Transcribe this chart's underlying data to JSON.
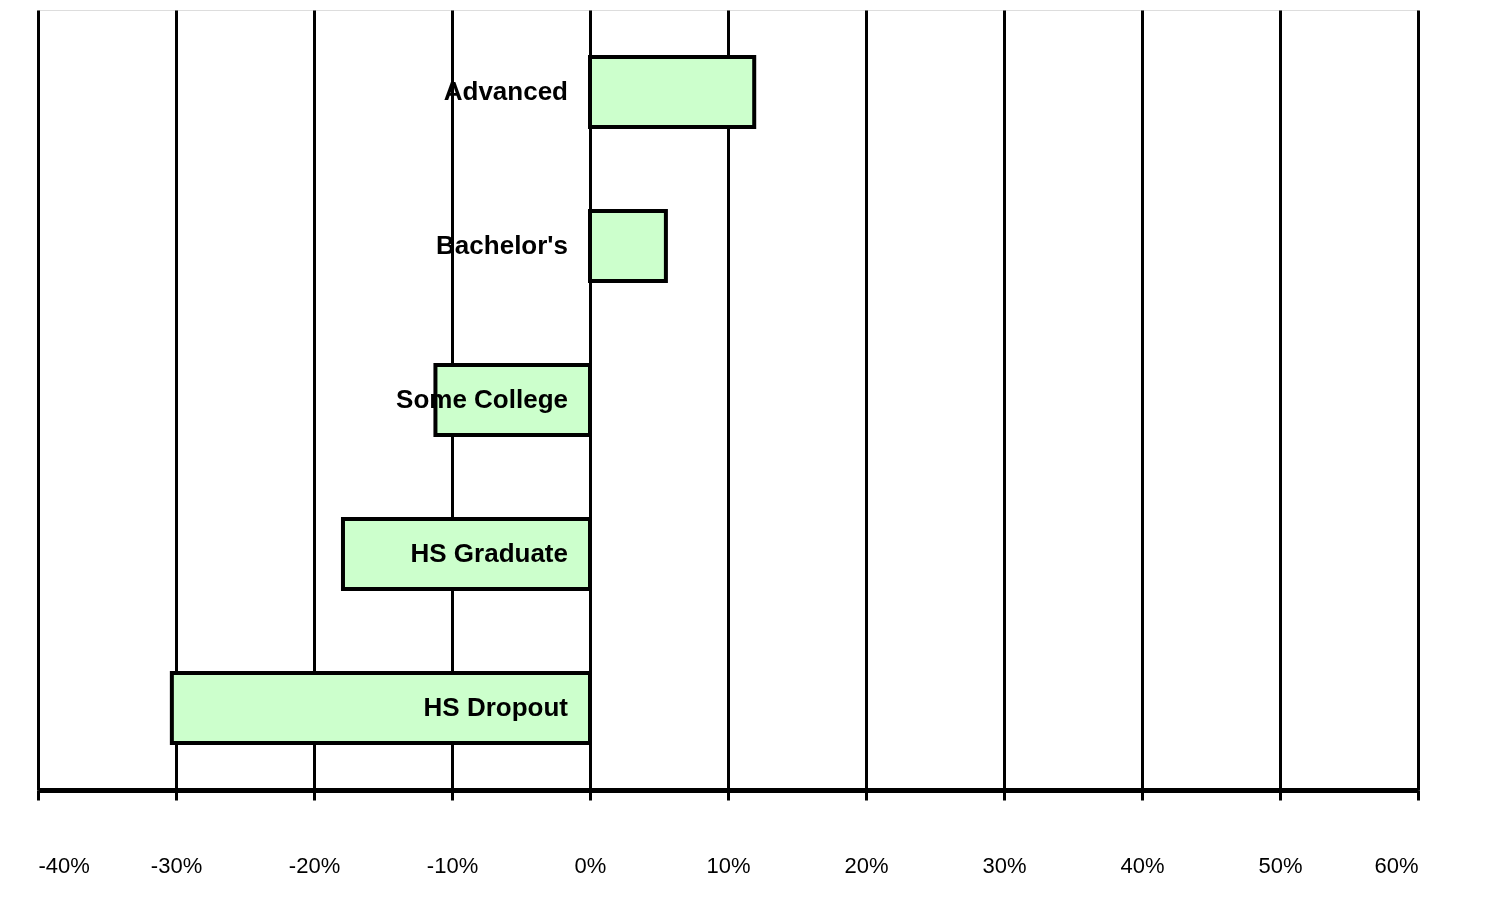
{
  "chart_data": {
    "type": "bar",
    "orientation": "horizontal",
    "categories": [
      "Advanced",
      "Bachelor's",
      "Some College",
      "HS Graduate",
      "HS Dropout"
    ],
    "values": [
      11.9,
      5.5,
      -11.2,
      -17.9,
      -30.3
    ],
    "color": "#ccffcc",
    "xlim": [
      -40,
      60
    ],
    "xticks": [
      {
        "value": -40,
        "label": "-40%"
      },
      {
        "value": -30,
        "label": "-30%"
      },
      {
        "value": -20,
        "label": "-20%"
      },
      {
        "value": -10,
        "label": "-10%"
      },
      {
        "value": 0,
        "label": "0%"
      },
      {
        "value": 10,
        "label": "10%"
      },
      {
        "value": 20,
        "label": "20%"
      },
      {
        "value": 30,
        "label": "30%"
      },
      {
        "value": 40,
        "label": "40%"
      },
      {
        "value": 50,
        "label": "50%"
      },
      {
        "value": 60,
        "label": "60%"
      }
    ],
    "grid": "x"
  }
}
